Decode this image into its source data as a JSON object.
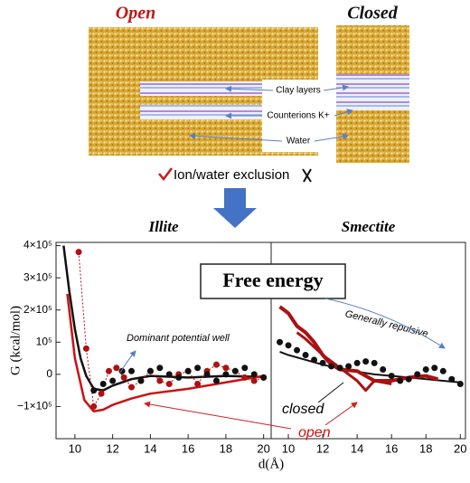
{
  "header": {
    "open": "Open",
    "closed": "Closed",
    "labels": [
      "Clay layers",
      "Counterions K+",
      "Water"
    ],
    "caption": "Ion/water exclusion"
  },
  "annotations": {
    "box": "Free energy",
    "well": "Dominant potential well",
    "repulsive": "Generally repulsive",
    "closed": "closed",
    "open": "open"
  },
  "chart_data": [
    {
      "type": "line",
      "title": "Illite",
      "ylabel": "G (kcal/mol)",
      "xlabel": "d(Å)",
      "xlim": [
        9,
        20.4
      ],
      "xticks": [
        10,
        12,
        14,
        16,
        18,
        20
      ],
      "ylim": [
        -200000,
        410000
      ],
      "yticks": [
        {
          "value": -100000,
          "label": "−1×10⁵"
        },
        0,
        {
          "value": 100000,
          "label": "10⁵"
        },
        {
          "value": 200000,
          "label": "2×10⁵"
        },
        {
          "value": 300000,
          "label": "3×10⁵"
        },
        {
          "value": 400000,
          "label": "4×10⁵"
        }
      ],
      "series": [
        {
          "color": "#111111",
          "line": "solid",
          "width": 2.5,
          "marker": false,
          "x": [
            9.4,
            9.7,
            10,
            10.3,
            10.6,
            11,
            11.5,
            12,
            13,
            14,
            16,
            18,
            20
          ],
          "values": [
            400000,
            260000,
            140000,
            50000,
            -5000,
            -45000,
            -50000,
            -35000,
            -15000,
            -5000,
            -10000,
            -5000,
            -8000
          ]
        },
        {
          "color": "#cc1111",
          "line": "solid",
          "width": 2.5,
          "marker": false,
          "x": [
            9.6,
            10,
            10.5,
            11,
            11.5,
            12,
            13,
            14,
            16,
            18,
            20
          ],
          "values": [
            250000,
            50000,
            -80000,
            -115000,
            -110000,
            -95000,
            -75000,
            -60000,
            -45000,
            -25000,
            -5000
          ]
        },
        {
          "color": "#b01010",
          "line": "dotted",
          "width": 1,
          "marker": true,
          "x": [
            10.2,
            10.6,
            11,
            11.4,
            11.8,
            12.2,
            12.6,
            13,
            13.5,
            14,
            14.5,
            15,
            15.5,
            16,
            16.5,
            17,
            17.5,
            18,
            18.5,
            19,
            19.5,
            20
          ],
          "values": [
            380000,
            80000,
            -100000,
            -60000,
            10000,
            20000,
            -10000,
            -40000,
            -20000,
            10000,
            -20000,
            -30000,
            0,
            10000,
            -30000,
            10000,
            30000,
            20000,
            10000,
            -10000,
            -20000,
            -10000
          ]
        },
        {
          "color": "#111111",
          "line": "none",
          "width": 1,
          "marker": true,
          "x": [
            11,
            11.5,
            12,
            12.5,
            13,
            13.5,
            14,
            14.5,
            15,
            15.5,
            16,
            16.5,
            17,
            17.5,
            18,
            18.5,
            19,
            19.5,
            20
          ],
          "values": [
            -50000,
            -30000,
            -20000,
            10000,
            10000,
            -20000,
            10000,
            20000,
            0,
            -10000,
            10000,
            20000,
            0,
            -20000,
            0,
            10000,
            20000,
            0,
            -10000
          ]
        }
      ]
    },
    {
      "type": "line",
      "title": "Smectite",
      "xlim": [
        9,
        20.3
      ],
      "xticks": [
        10,
        12,
        14,
        16,
        18,
        20
      ],
      "ylim": [
        -200000,
        410000
      ],
      "series": [
        {
          "color": "#111111",
          "line": "solid",
          "width": 2,
          "marker": false,
          "x": [
            9.5,
            10,
            11,
            12,
            13,
            14,
            15,
            16,
            17,
            18,
            19,
            20
          ],
          "values": [
            70000,
            60000,
            45000,
            30000,
            18000,
            8000,
            0,
            -5000,
            -10000,
            -15000,
            -20000,
            -25000
          ]
        },
        {
          "color": "#aa1111",
          "line": "solid",
          "width": 4,
          "marker": false,
          "x": [
            9.5,
            10,
            10.5,
            11,
            11.5,
            12,
            12.5,
            13,
            14,
            15,
            16,
            17,
            18,
            18.7
          ],
          "values": [
            210000,
            190000,
            150000,
            130000,
            100000,
            60000,
            30000,
            15000,
            10000,
            -20000,
            -20000,
            -10000,
            -5000,
            -15000
          ]
        },
        {
          "color": "#aa1111",
          "line": "solid",
          "width": 3,
          "marker": false,
          "x": [
            10.5,
            11,
            12,
            13,
            14,
            14.5,
            15,
            16
          ],
          "values": [
            130000,
            110000,
            60000,
            20000,
            -20000,
            -50000,
            -20000,
            -30000
          ]
        },
        {
          "color": "#111111",
          "line": "none",
          "width": 1,
          "marker": true,
          "x": [
            9.5,
            10,
            10.5,
            11,
            11.5,
            12,
            12.5,
            13,
            13.5,
            14,
            14.5,
            15,
            15.5,
            16,
            16.5,
            17,
            17.5,
            18,
            18.5,
            19,
            19.5,
            20
          ],
          "values": [
            100000,
            90000,
            75000,
            60000,
            45000,
            35000,
            25000,
            20000,
            25000,
            35000,
            40000,
            35000,
            15000,
            -5000,
            -20000,
            -15000,
            0,
            15000,
            20000,
            10000,
            -15000,
            -30000
          ]
        }
      ]
    }
  ]
}
